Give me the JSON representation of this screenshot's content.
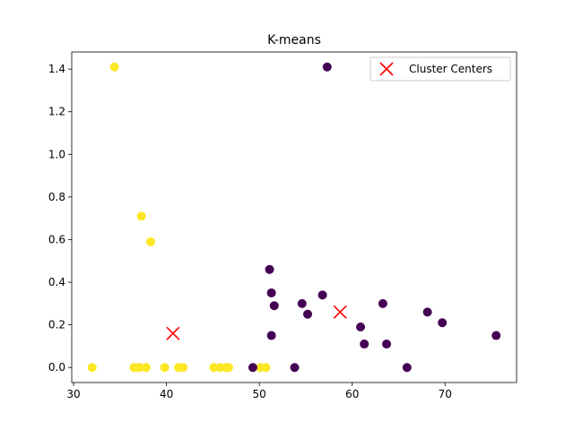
{
  "chart_data": {
    "type": "scatter",
    "title": "K-means",
    "xlabel": "",
    "ylabel": "",
    "xlim": [
      29.8,
      77.7
    ],
    "ylim": [
      -0.0705,
      1.4805
    ],
    "x_ticks": [
      30,
      40,
      50,
      60,
      70
    ],
    "x_tick_labels": [
      "30",
      "40",
      "50",
      "60",
      "70"
    ],
    "y_ticks": [
      0.0,
      0.2,
      0.4,
      0.6,
      0.8,
      1.0,
      1.2,
      1.4
    ],
    "y_tick_labels": [
      "0.0",
      "0.2",
      "0.4",
      "0.6",
      "0.8",
      "1.0",
      "1.2",
      "1.4"
    ],
    "grid": false,
    "legend_position": "top-right",
    "colors": {
      "cluster_purple": "#440154",
      "cluster_yellow": "#fde725",
      "center_marker": "#ff0000"
    },
    "series": [
      {
        "color": "#fde725",
        "points": [
          [
            34.4,
            1.41
          ],
          [
            37.3,
            0.71
          ],
          [
            38.3,
            0.59
          ],
          [
            32.0,
            0.0
          ],
          [
            36.5,
            0.0
          ],
          [
            36.9,
            0.0
          ],
          [
            37.1,
            0.0
          ],
          [
            37.8,
            0.0
          ],
          [
            39.8,
            0.0
          ],
          [
            41.3,
            0.0
          ],
          [
            41.8,
            0.0
          ],
          [
            45.1,
            0.0
          ],
          [
            45.8,
            0.0
          ],
          [
            46.4,
            0.0
          ],
          [
            46.7,
            0.0
          ],
          [
            50.1,
            0.0
          ],
          [
            50.7,
            0.0
          ]
        ]
      },
      {
        "color": "#440154",
        "points": [
          [
            57.3,
            1.41
          ],
          [
            51.1,
            0.46
          ],
          [
            51.3,
            0.35
          ],
          [
            51.6,
            0.29
          ],
          [
            56.8,
            0.34
          ],
          [
            54.6,
            0.3
          ],
          [
            55.2,
            0.25
          ],
          [
            51.3,
            0.15
          ],
          [
            60.9,
            0.19
          ],
          [
            61.3,
            0.11
          ],
          [
            63.3,
            0.3
          ],
          [
            63.7,
            0.11
          ],
          [
            68.1,
            0.26
          ],
          [
            69.7,
            0.21
          ],
          [
            75.5,
            0.15
          ],
          [
            49.3,
            0.0
          ],
          [
            53.8,
            0.0
          ],
          [
            65.9,
            0.0
          ]
        ]
      },
      {
        "name": "Cluster Centers",
        "marker": "x",
        "color": "#ff0000",
        "points": [
          [
            40.7,
            0.16
          ],
          [
            58.7,
            0.26
          ]
        ]
      }
    ]
  }
}
